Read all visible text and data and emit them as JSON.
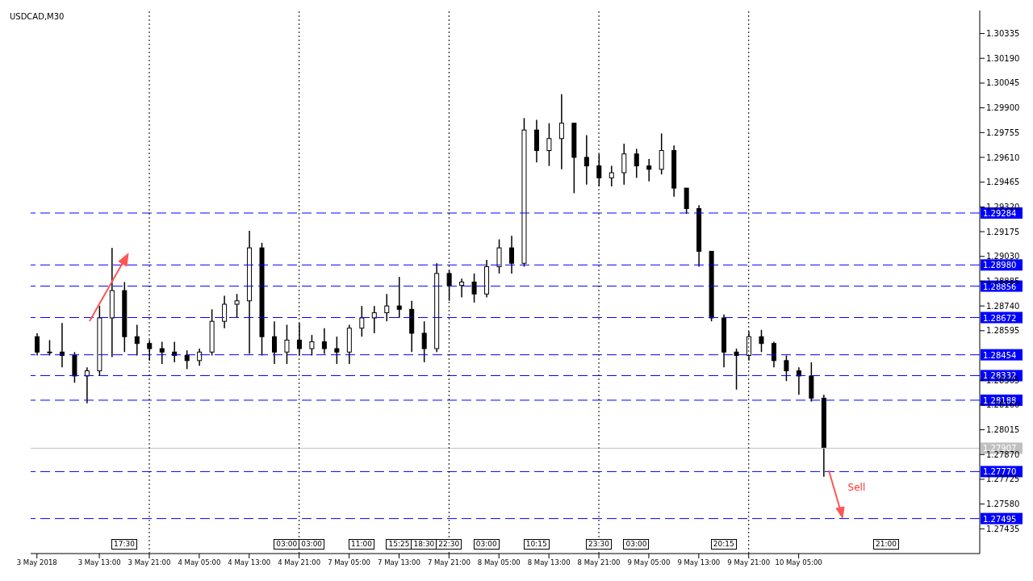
{
  "chart_data": {
    "type": "candlestick",
    "title": "USDCAD,M30",
    "color": "#000000",
    "categories": [
      "3 May 2018",
      null,
      null,
      null,
      null,
      "3 May 13:00",
      null,
      null,
      null,
      "3 May 21:00",
      null,
      null,
      null,
      "4 May 05:00",
      null,
      null,
      null,
      "4 May 13:00",
      null,
      null,
      null,
      "4 May 21:00",
      null,
      null,
      null,
      "7 May 05:00",
      null,
      null,
      null,
      "7 May 13:00",
      null,
      null,
      null,
      "7 May 21:00",
      null,
      null,
      null,
      "8 May 05:00",
      null,
      null,
      null,
      "8 May 13:00",
      null,
      null,
      null,
      "8 May 21:00",
      null,
      null,
      null,
      "9 May 05:00",
      null,
      null,
      null,
      "9 May 13:00",
      null,
      null,
      null,
      "9 May 21:00",
      null,
      null,
      null,
      "10 May 05:00",
      null,
      null,
      null,
      null,
      null,
      null,
      null,
      null,
      null,
      null,
      null,
      null,
      null,
      null
    ],
    "ohlc": [
      [
        1.2856,
        1.2858,
        1.2845,
        1.2847
      ],
      [
        1.2847,
        1.2854,
        1.2845,
        1.2847
      ],
      [
        1.2847,
        1.2864,
        1.2838,
        1.2845
      ],
      [
        1.2845,
        1.2847,
        1.2829,
        1.2833
      ],
      [
        1.2833,
        1.2838,
        1.2817,
        1.2836
      ],
      [
        1.2836,
        1.2874,
        1.2833,
        1.2867
      ],
      [
        1.2867,
        1.2908,
        1.2844,
        1.2883
      ],
      [
        1.2883,
        1.2888,
        1.2847,
        1.2856
      ],
      [
        1.2856,
        1.2863,
        1.2845,
        1.2852
      ],
      [
        1.2852,
        1.2854,
        1.2842,
        1.2849
      ],
      [
        1.2849,
        1.2853,
        1.284,
        1.2847
      ],
      [
        1.2847,
        1.2853,
        1.2841,
        1.2845
      ],
      [
        1.2845,
        1.2848,
        1.2837,
        1.2842
      ],
      [
        1.2842,
        1.2849,
        1.2839,
        1.2847
      ],
      [
        1.2847,
        1.2872,
        1.2845,
        1.2865
      ],
      [
        1.2865,
        1.288,
        1.2861,
        1.2875
      ],
      [
        1.2875,
        1.2881,
        1.2867,
        1.2877
      ],
      [
        1.2877,
        1.2918,
        1.2846,
        1.2908
      ],
      [
        1.2908,
        1.2911,
        1.2845,
        1.2856
      ],
      [
        1.2856,
        1.2865,
        1.284,
        1.2847
      ],
      [
        1.2847,
        1.2863,
        1.284,
        1.2854
      ],
      [
        1.2854,
        1.2864,
        1.2845,
        1.2849
      ],
      [
        1.2849,
        1.2857,
        1.2845,
        1.2853
      ],
      [
        1.2853,
        1.2861,
        1.2846,
        1.2849
      ],
      [
        1.2849,
        1.2856,
        1.284,
        1.2847
      ],
      [
        1.2847,
        1.2863,
        1.284,
        1.2861
      ],
      [
        1.2861,
        1.2874,
        1.2856,
        1.2867
      ],
      [
        1.2867,
        1.2874,
        1.2858,
        1.287
      ],
      [
        1.287,
        1.2881,
        1.2865,
        1.2874
      ],
      [
        1.2874,
        1.2891,
        1.2867,
        1.2872
      ],
      [
        1.2872,
        1.2877,
        1.2847,
        1.2858
      ],
      [
        1.2858,
        1.2865,
        1.2841,
        1.2849
      ],
      [
        1.2849,
        1.2899,
        1.2847,
        1.2893
      ],
      [
        1.2893,
        1.2895,
        1.2877,
        1.2886
      ],
      [
        1.2886,
        1.289,
        1.2879,
        1.2888
      ],
      [
        1.2888,
        1.2893,
        1.2876,
        1.2881
      ],
      [
        1.2881,
        1.2901,
        1.2879,
        1.2897
      ],
      [
        1.2897,
        1.2913,
        1.2893,
        1.2908
      ],
      [
        1.2908,
        1.2915,
        1.2893,
        1.2899
      ],
      [
        1.2899,
        1.2984,
        1.2897,
        1.2977
      ],
      [
        1.2977,
        1.2983,
        1.2958,
        1.2965
      ],
      [
        1.2965,
        1.2981,
        1.2956,
        1.2972
      ],
      [
        1.2972,
        1.2998,
        1.2954,
        1.2981
      ],
      [
        1.2981,
        1.2981,
        1.294,
        1.2961
      ],
      [
        1.2961,
        1.2974,
        1.2945,
        1.2956
      ],
      [
        1.2956,
        1.2963,
        1.2944,
        1.2949
      ],
      [
        1.2949,
        1.2956,
        1.2944,
        1.2952
      ],
      [
        1.2952,
        1.2969,
        1.2945,
        1.2963
      ],
      [
        1.2963,
        1.2966,
        1.2949,
        1.2956
      ],
      [
        1.2956,
        1.296,
        1.2947,
        1.2954
      ],
      [
        1.2954,
        1.2975,
        1.2951,
        1.2965
      ],
      [
        1.2965,
        1.2968,
        1.2938,
        1.2943
      ],
      [
        1.2943,
        1.2943,
        1.2928,
        1.2931
      ],
      [
        1.2931,
        1.2933,
        1.2897,
        1.2906
      ],
      [
        1.2906,
        1.2906,
        1.2865,
        1.2867
      ],
      [
        1.2867,
        1.2869,
        1.2838,
        1.2847
      ],
      [
        1.2847,
        1.2849,
        1.2825,
        1.2845
      ],
      [
        1.2845,
        1.2859,
        1.2842,
        1.2856
      ],
      [
        1.2856,
        1.286,
        1.2847,
        1.2852
      ],
      [
        1.2852,
        1.2853,
        1.2838,
        1.2842
      ],
      [
        1.2842,
        1.2845,
        1.283,
        1.2836
      ],
      [
        1.2836,
        1.2838,
        1.2822,
        1.2833
      ],
      [
        1.2833,
        1.2841,
        1.2818,
        1.282
      ],
      [
        1.282,
        1.2822,
        1.2774,
        1.2791
      ],
      null,
      null,
      null,
      null,
      null,
      null,
      null,
      null,
      null,
      null,
      null,
      null
    ],
    "ylim": [
      1.2729,
      1.3047
    ],
    "yticks": [
      1.30335,
      {
        "value": 1.3019,
        "label": "1.30190"
      },
      1.30045,
      {
        "value": 1.299,
        "label": "1.29900"
      },
      1.29755,
      {
        "value": 1.2961,
        "label": "1.29610"
      },
      1.29465,
      {
        "value": 1.2932,
        "label": "1.29320"
      },
      1.29175,
      {
        "value": 1.2903,
        "label": "1.29030"
      },
      1.28885,
      {
        "value": 1.2874,
        "label": "1.28740"
      },
      1.28595,
      1.28305,
      {
        "value": 1.2816,
        "label": "1.28160"
      },
      1.28015,
      {
        "value": 1.2787,
        "label": "1.27870"
      },
      1.27725,
      {
        "value": 1.2758,
        "label": "1.27580"
      },
      1.27435
    ],
    "ref_lines": [
      {
        "axis": "y",
        "value": 1.29284,
        "label": "1.29284",
        "color": "#0000ff",
        "line_style": "dashed"
      },
      {
        "axis": "y",
        "value": 1.2898,
        "label": "1.28980",
        "color": "#0000ff",
        "line_style": "dashed"
      },
      {
        "axis": "y",
        "value": 1.28856,
        "label": "1.28856",
        "color": "#0000ff",
        "line_style": "dashed"
      },
      {
        "axis": "y",
        "value": 1.28672,
        "label": "1.28672",
        "color": "#0000ff",
        "line_style": "dashed"
      },
      {
        "axis": "y",
        "value": 1.28454,
        "label": "1.28454",
        "color": "#0000ff",
        "line_style": "dashed"
      },
      {
        "axis": "y",
        "value": 1.28332,
        "label": "1.28332",
        "color": "#0000ff",
        "line_style": "dashed"
      },
      {
        "axis": "y",
        "value": 1.28188,
        "label": "1.28188",
        "color": "#0000ff",
        "line_style": "dashed"
      },
      {
        "axis": "y",
        "value": 1.27907,
        "label": "1.27907",
        "color": "#c0c0c0",
        "line_style": "solid"
      },
      {
        "axis": "y",
        "value": 1.2777,
        "label": "1.27770",
        "color": "#0000ff",
        "line_style": "dashed"
      },
      {
        "axis": "y",
        "value": 1.27495,
        "label": "1.27495",
        "color": "#0000ff",
        "line_style": "dashed"
      },
      {
        "axis": "x",
        "value": "3 May 21:00",
        "color": "#000000",
        "line_style": "dotted"
      },
      {
        "axis": "x",
        "value": "4 May 21:00",
        "color": "#000000",
        "line_style": "dotted"
      },
      {
        "axis": "x",
        "value": "7 May 21:00",
        "color": "#000000",
        "line_style": "dotted"
      },
      {
        "axis": "x",
        "value": "8 May 21:00",
        "color": "#000000",
        "line_style": "dotted"
      },
      {
        "axis": "x",
        "value": "9 May 21:00",
        "color": "#000000",
        "line_style": "dotted"
      }
    ],
    "annotations": [
      {
        "text": "Sell",
        "y": 1.27495
      },
      "17:30",
      "03:00",
      "03:00",
      "11:00",
      "15:25",
      "18:30",
      "22:30",
      "03:00",
      "10:15",
      "23:30",
      "03:00",
      "20:15",
      "21:00"
    ]
  }
}
